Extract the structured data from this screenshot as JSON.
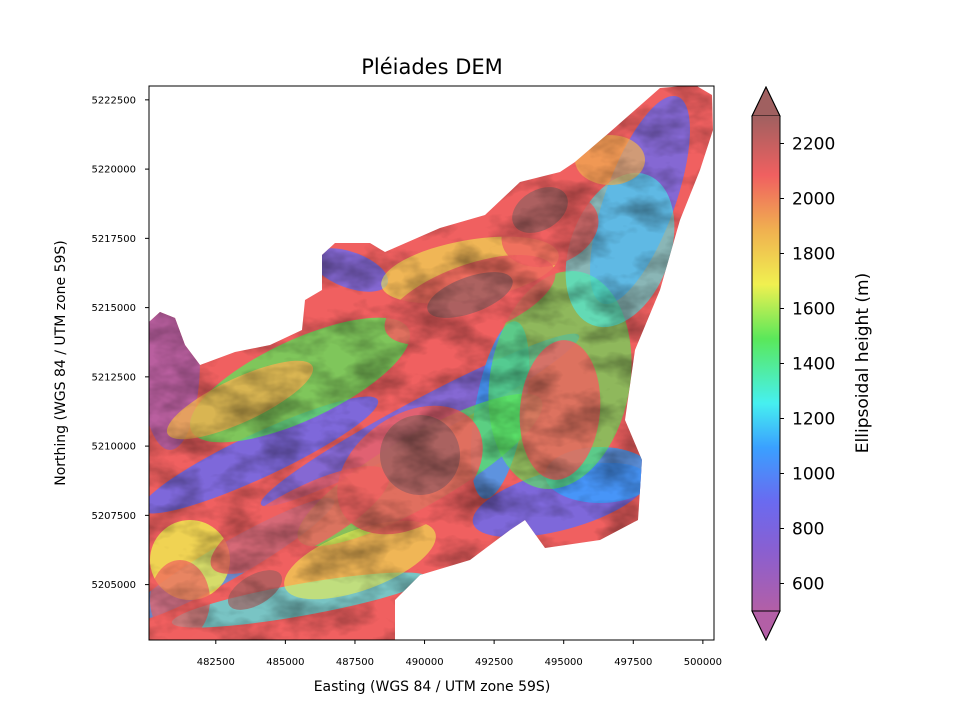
{
  "chart_data": {
    "type": "heatmap",
    "title": "Pléiades DEM",
    "xlabel": "Easting (WGS 84 / UTM zone 59S)",
    "ylabel": "Northing (WGS 84 / UTM zone 59S)",
    "xlim": [
      480100,
      500400
    ],
    "ylim": [
      5203000,
      5223000
    ],
    "xticks": [
      "482500",
      "485000",
      "487500",
      "490000",
      "492500",
      "495000",
      "497500",
      "500000"
    ],
    "xtick_values": [
      482500,
      485000,
      487500,
      490000,
      492500,
      495000,
      497500,
      500000
    ],
    "yticks": [
      "5205000",
      "5207500",
      "5210000",
      "5212500",
      "5215000",
      "5217500",
      "5220000",
      "5222500"
    ],
    "ytick_values": [
      5205000,
      5207500,
      5210000,
      5212500,
      5215000,
      5217500,
      5220000,
      5222500
    ],
    "colorbar": {
      "label": "Ellipsoidal height (m)",
      "range": [
        500,
        2300
      ],
      "extend": "both",
      "colormap": "gist_rainbow_r (alpha)",
      "ticks": [
        "600",
        "800",
        "1000",
        "1200",
        "1400",
        "1600",
        "1800",
        "2000",
        "2200"
      ],
      "tick_values": [
        600,
        800,
        1000,
        1200,
        1400,
        1600,
        1800,
        2000,
        2200
      ],
      "colors": [
        "#b35fa6",
        "#6a6af0",
        "#3aa0ff",
        "#46f0f0",
        "#5ae85a",
        "#f0f050",
        "#f0b050",
        "#f06060",
        "#a06060"
      ]
    },
    "grid": false
  }
}
